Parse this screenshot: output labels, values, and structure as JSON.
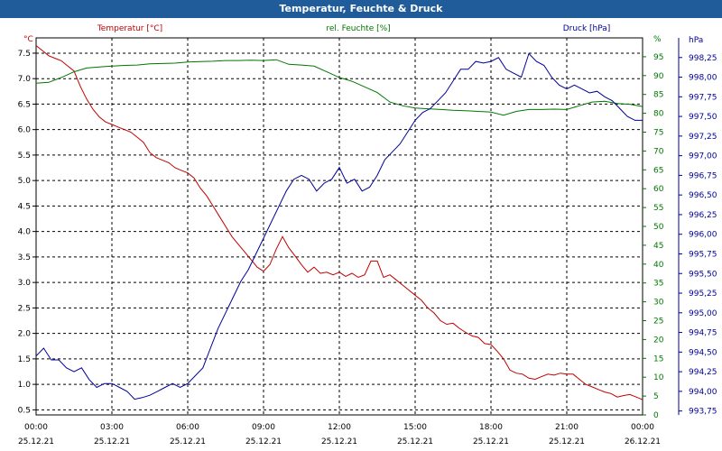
{
  "window": {
    "title": "Temperatur, Feuchte & Druck"
  },
  "chart_data": {
    "type": "line",
    "title": "Temperatur, Feuchte & Druck",
    "grid": true,
    "x_ticks": [
      {
        "time": "00:00",
        "date": "25.12.21"
      },
      {
        "time": "03:00",
        "date": "25.12.21"
      },
      {
        "time": "06:00",
        "date": "25.12.21"
      },
      {
        "time": "09:00",
        "date": "25.12.21"
      },
      {
        "time": "12:00",
        "date": "25.12.21"
      },
      {
        "time": "15:00",
        "date": "25.12.21"
      },
      {
        "time": "18:00",
        "date": "25.12.21"
      },
      {
        "time": "21:00",
        "date": "25.12.21"
      },
      {
        "time": "00:00",
        "date": "26.12.21"
      }
    ],
    "axes": {
      "temperature": {
        "label": "Temperatur [°C]",
        "unit": "°C",
        "color": "#c00000",
        "ylim": [
          0.4,
          7.8
        ],
        "ticks": [
          "0.5",
          "1.0",
          "1.5",
          "2.0",
          "2.5",
          "3.0",
          "3.5",
          "4.0",
          "4.5",
          "5.0",
          "5.5",
          "6.0",
          "6.5",
          "7.0",
          "7.5"
        ]
      },
      "humidity": {
        "label": "rel. Feuchte [%]",
        "unit": "%",
        "color": "#007700",
        "ylim": [
          0,
          100
        ],
        "ticks": [
          "0",
          "5",
          "10",
          "15",
          "20",
          "25",
          "30",
          "35",
          "40",
          "45",
          "50",
          "55",
          "60",
          "65",
          "70",
          "75",
          "80",
          "85",
          "90",
          "95"
        ]
      },
      "pressure": {
        "label": "Druck [hPa]",
        "unit": "hPa",
        "color": "#000099",
        "ylim": [
          993.7,
          998.5
        ],
        "ticks": [
          "993,75",
          "994,00",
          "994,25",
          "994,50",
          "994,75",
          "995,00",
          "995,25",
          "995,50",
          "995,75",
          "996,00",
          "996,25",
          "996,50",
          "996,75",
          "997,00",
          "997,25",
          "997,50",
          "997,75",
          "998,00",
          "998,25"
        ]
      }
    },
    "series": [
      {
        "name": "Temperatur [°C]",
        "axis": "temperature",
        "x": [
          0,
          0.25,
          0.5,
          0.75,
          1,
          1.25,
          1.5,
          1.75,
          2,
          2.25,
          2.5,
          2.75,
          3,
          3.25,
          3.5,
          3.75,
          4,
          4.25,
          4.5,
          4.75,
          5,
          5.25,
          5.5,
          5.75,
          6,
          6.25,
          6.5,
          6.75,
          7,
          7.25,
          7.5,
          7.75,
          8,
          8.25,
          8.5,
          8.75,
          9,
          9.25,
          9.5,
          9.75,
          10,
          10.25,
          10.5,
          10.75,
          11,
          11.25,
          11.5,
          11.75,
          12,
          12.25,
          12.5,
          12.75,
          13,
          13.25,
          13.5,
          13.75,
          14,
          14.25,
          14.5,
          14.75,
          15,
          15.25,
          15.5,
          15.75,
          16,
          16.25,
          16.5,
          16.75,
          17,
          17.25,
          17.5,
          17.75,
          18,
          18.25,
          18.5,
          18.75,
          19,
          19.25,
          19.5,
          19.75,
          20,
          20.25,
          20.5,
          20.75,
          21,
          21.25,
          21.5,
          21.75,
          22,
          22.25,
          22.5,
          22.75,
          23,
          23.25,
          23.5,
          23.75,
          24
        ],
        "values": [
          7.65,
          7.55,
          7.45,
          7.4,
          7.35,
          7.25,
          7.15,
          6.85,
          6.6,
          6.4,
          6.25,
          6.15,
          6.1,
          6.05,
          6.0,
          5.95,
          5.85,
          5.75,
          5.55,
          5.45,
          5.4,
          5.35,
          5.25,
          5.2,
          5.15,
          5.05,
          4.85,
          4.7,
          4.5,
          4.3,
          4.1,
          3.9,
          3.75,
          3.6,
          3.45,
          3.3,
          3.22,
          3.35,
          3.65,
          3.9,
          3.68,
          3.52,
          3.35,
          3.2,
          3.3,
          3.18,
          3.2,
          3.15,
          3.2,
          3.12,
          3.18,
          3.1,
          3.15,
          3.42,
          3.42,
          3.1,
          3.15,
          3.05,
          2.95,
          2.85,
          2.75,
          2.65,
          2.5,
          2.4,
          2.25,
          2.18,
          2.2,
          2.1,
          2.02,
          1.95,
          1.92,
          1.8,
          1.78,
          1.65,
          1.5,
          1.28,
          1.22,
          1.2,
          1.12,
          1.1,
          1.15,
          1.2,
          1.18,
          1.22,
          1.2,
          1.2,
          1.1,
          1.0,
          0.95,
          0.9,
          0.85,
          0.82,
          0.75,
          0.78,
          0.8,
          0.75,
          0.7
        ]
      },
      {
        "name": "rel. Feuchte [%]",
        "axis": "humidity",
        "x": [
          0,
          0.5,
          1,
          1.5,
          2,
          2.5,
          3,
          3.5,
          4,
          4.5,
          5,
          5.5,
          6,
          6.5,
          7,
          7.5,
          8,
          8.5,
          9,
          9.5,
          10,
          10.5,
          11,
          11.5,
          12,
          12.5,
          13,
          13.5,
          14,
          14.5,
          15,
          15.5,
          16,
          16.5,
          17,
          17.5,
          18,
          18.5,
          19,
          19.5,
          20,
          20.5,
          21,
          21.5,
          22,
          22.5,
          23,
          23.5,
          24
        ],
        "values": [
          88,
          88.2,
          89.5,
          91,
          92,
          92.3,
          92.5,
          92.7,
          92.8,
          93.1,
          93.2,
          93.3,
          93.6,
          93.7,
          93.8,
          94,
          94,
          94.1,
          94,
          94.2,
          93,
          92.8,
          92.5,
          91,
          89.5,
          88.5,
          87,
          85.5,
          83,
          82,
          81.4,
          81.2,
          81,
          80.8,
          80.7,
          80.5,
          80.3,
          79.5,
          80.5,
          81,
          81,
          81.1,
          81,
          82,
          83,
          83.2,
          82.6,
          82.4,
          81.8
        ]
      },
      {
        "name": "Druck [hPa]",
        "axis": "pressure",
        "x": [
          0,
          0.3,
          0.6,
          0.9,
          1.2,
          1.5,
          1.8,
          2.1,
          2.4,
          2.7,
          3,
          3.3,
          3.6,
          3.9,
          4.2,
          4.5,
          4.8,
          5.1,
          5.4,
          5.7,
          6,
          6.3,
          6.6,
          6.9,
          7.2,
          7.5,
          7.8,
          8.1,
          8.4,
          8.7,
          9,
          9.3,
          9.6,
          9.9,
          10.2,
          10.5,
          10.8,
          11.1,
          11.4,
          11.7,
          12,
          12.3,
          12.6,
          12.9,
          13.2,
          13.5,
          13.8,
          14.1,
          14.4,
          14.7,
          15,
          15.3,
          15.6,
          15.9,
          16.2,
          16.5,
          16.8,
          17.1,
          17.4,
          17.7,
          18,
          18.3,
          18.6,
          18.9,
          19.2,
          19.5,
          19.8,
          20.1,
          20.4,
          20.7,
          21,
          21.3,
          21.6,
          21.9,
          22.2,
          22.5,
          22.8,
          23.1,
          23.4,
          23.7,
          24
        ],
        "values": [
          994.45,
          994.55,
          994.4,
          994.4,
          994.3,
          994.25,
          994.3,
          994.15,
          994.05,
          994.1,
          994.1,
          994.05,
          994.0,
          993.9,
          993.92,
          993.95,
          994.0,
          994.05,
          994.1,
          994.05,
          994.1,
          994.2,
          994.3,
          994.55,
          994.8,
          995.0,
          995.2,
          995.4,
          995.55,
          995.75,
          995.95,
          996.15,
          996.35,
          996.55,
          996.7,
          996.75,
          996.7,
          996.55,
          996.65,
          996.7,
          996.85,
          996.65,
          996.7,
          996.55,
          996.6,
          996.75,
          996.95,
          997.05,
          997.15,
          997.3,
          997.45,
          997.55,
          997.6,
          997.7,
          997.8,
          997.95,
          998.1,
          998.1,
          998.2,
          998.18,
          998.2,
          998.25,
          998.1,
          998.05,
          998.0,
          998.3,
          998.2,
          998.15,
          998.0,
          997.9,
          997.85,
          997.9,
          997.85,
          997.8,
          997.82,
          997.75,
          997.7,
          997.6,
          997.5,
          997.45,
          997.45
        ]
      }
    ]
  }
}
